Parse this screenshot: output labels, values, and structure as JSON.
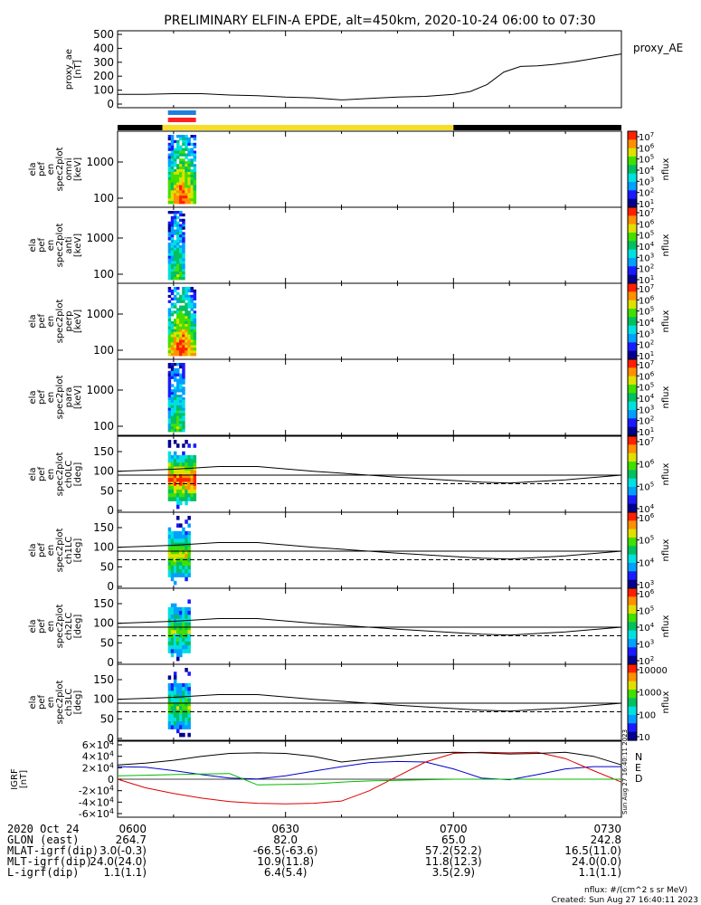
{
  "title": "PRELIMINARY ELFIN-A EPDE, alt=450km, 2020-10-24 06:00 to 07:30",
  "footer": {
    "units": "nflux: #/(cm^2 s sr MeV)",
    "created": "Created: Sun Aug 27 16:40:11 2023"
  },
  "side_stamp": "Sun Aug 27 16:40:11 2023",
  "colorbar_label": "nflux",
  "colorbar_colors": [
    "#000090",
    "#1a1aff",
    "#00a0ff",
    "#00e0e0",
    "#00c060",
    "#40e000",
    "#e0e000",
    "#ff9000",
    "#ff2000"
  ],
  "ephemeris": {
    "rows": [
      {
        "label": "2020 Oct 24",
        "values": [
          "0600",
          "0630",
          "0700",
          "0730"
        ]
      },
      {
        "label": "GLON (east)",
        "values": [
          "264.7",
          "82.0",
          "65.0",
          "242.8"
        ]
      },
      {
        "label": "MLAT-igrf(dip)",
        "values": [
          "3.0(-0.3)",
          "-66.5(-63.6)",
          "57.2(52.2)",
          "16.5(11.0)"
        ]
      },
      {
        "label": "MLT-igrf(dip)",
        "values": [
          "24.0(24.0)",
          "10.9(11.8)",
          "11.8(12.3)",
          "24.0(0.0)"
        ]
      },
      {
        "label": "L-igrf(dip)",
        "values": [
          "1.1(1.1)",
          "6.4(5.4)",
          "3.5(2.9)",
          "1.1(1.1)"
        ]
      }
    ]
  },
  "chart_data": [
    {
      "type": "line",
      "panel": "proxy_ae",
      "ylabel": [
        "proxy_ae",
        "[nT]"
      ],
      "legend": "proxy_AE",
      "xlim": [
        "06:00",
        "07:30"
      ],
      "ylim": [
        0,
        500
      ],
      "yticks": [
        "0",
        "100",
        "200",
        "300",
        "400",
        "500"
      ],
      "x": [
        "06:00",
        "06:05",
        "06:10",
        "06:15",
        "06:20",
        "06:25",
        "06:30",
        "06:35",
        "06:40",
        "06:45",
        "06:50",
        "06:55",
        "07:00",
        "07:03",
        "07:06",
        "07:09",
        "07:12",
        "07:15",
        "07:18",
        "07:21",
        "07:24",
        "07:27",
        "07:30"
      ],
      "values": [
        70,
        70,
        75,
        75,
        65,
        60,
        50,
        45,
        30,
        40,
        50,
        55,
        70,
        90,
        140,
        230,
        270,
        275,
        285,
        300,
        320,
        340,
        360
      ]
    },
    {
      "type": "bar",
      "panel": "orbit_bar",
      "segments": [
        {
          "from": "06:00",
          "to": "06:08",
          "color": "#000000"
        },
        {
          "from": "06:08",
          "to": "07:00",
          "color": "#f5dd2a"
        },
        {
          "from": "07:00",
          "to": "07:30",
          "color": "#000000"
        }
      ],
      "markers": [
        {
          "from": "06:09",
          "to": "06:14",
          "color": "#1e7fe0"
        },
        {
          "from": "06:09",
          "to": "06:14",
          "color": "#ff2020"
        }
      ]
    },
    {
      "type": "heatmap",
      "panel": "omni",
      "ylabel": [
        "ela",
        "pef",
        "en",
        "spec2plot",
        "omni",
        "[keV]"
      ],
      "yticks": [
        "100",
        "1000"
      ],
      "colorbar_ticks": [
        "10^7",
        "10^6",
        "10^5",
        "10^4",
        "10^3",
        "10^2",
        "10^1"
      ],
      "time_range": [
        "06:09",
        "06:14"
      ],
      "peak_level": 8
    },
    {
      "type": "heatmap",
      "panel": "anti",
      "ylabel": [
        "ela",
        "pef",
        "en",
        "spec2plot",
        "anti",
        "[keV]"
      ],
      "yticks": [
        "100",
        "1000"
      ],
      "colorbar_ticks": [
        "10^7",
        "10^6",
        "10^5",
        "10^4",
        "10^3",
        "10^2",
        "10^1"
      ],
      "time_range": [
        "06:09",
        "06:12"
      ],
      "peak_level": 5
    },
    {
      "type": "heatmap",
      "panel": "perp",
      "ylabel": [
        "ela",
        "pef",
        "en",
        "spec2plot",
        "perp",
        "[keV]"
      ],
      "yticks": [
        "100",
        "1000"
      ],
      "colorbar_ticks": [
        "10^7",
        "10^6",
        "10^5",
        "10^4",
        "10^3",
        "10^2",
        "10^1"
      ],
      "time_range": [
        "06:09",
        "06:14"
      ],
      "peak_level": 8
    },
    {
      "type": "heatmap",
      "panel": "para",
      "ylabel": [
        "ela",
        "pef",
        "en",
        "spec2plot",
        "para",
        "[keV]"
      ],
      "yticks": [
        "100",
        "1000"
      ],
      "colorbar_ticks": [
        "10^7",
        "10^6",
        "10^5",
        "10^4",
        "10^3",
        "10^2",
        "10^1"
      ],
      "time_range": [
        "06:09",
        "06:12"
      ],
      "peak_level": 5
    },
    {
      "type": "heatmap",
      "panel": "ch0LC",
      "ylabel": [
        "ela",
        "pef",
        "en",
        "spec2plot",
        "ch0LC",
        "[deg]"
      ],
      "yticks": [
        "0",
        "50",
        "100",
        "150"
      ],
      "colorbar_ticks": [
        "10^7",
        "10^6",
        "10^5",
        "10^4"
      ],
      "time_range": [
        "06:09",
        "06:14"
      ],
      "peak_level": 8
    },
    {
      "type": "heatmap",
      "panel": "ch1LC",
      "ylabel": [
        "ela",
        "pef",
        "en",
        "spec2plot",
        "ch1LC",
        "[deg]"
      ],
      "yticks": [
        "0",
        "50",
        "100",
        "150"
      ],
      "colorbar_ticks": [
        "10^6",
        "10^5",
        "10^4",
        "10^3"
      ],
      "time_range": [
        "06:09",
        "06:13"
      ],
      "peak_level": 6
    },
    {
      "type": "heatmap",
      "panel": "ch2LC",
      "ylabel": [
        "ela",
        "pef",
        "en",
        "spec2plot",
        "ch2LC",
        "[deg]"
      ],
      "yticks": [
        "0",
        "50",
        "100",
        "150"
      ],
      "colorbar_ticks": [
        "10^6",
        "10^5",
        "10^4",
        "10^3",
        "10^2"
      ],
      "time_range": [
        "06:09",
        "06:13"
      ],
      "peak_level": 5
    },
    {
      "type": "heatmap",
      "panel": "ch3LC",
      "ylabel": [
        "ela",
        "pef",
        "en",
        "spec2plot",
        "ch3LC",
        "[deg]"
      ],
      "yticks": [
        "0",
        "50",
        "100",
        "150"
      ],
      "colorbar_ticks": [
        "10000",
        "1000",
        "100",
        "10"
      ],
      "time_range": [
        "06:09",
        "06:13"
      ],
      "peak_level": 5
    },
    {
      "type": "line",
      "panel": "igrf",
      "ylabel": [
        "IGRF",
        "[nT]"
      ],
      "ylim": [
        -60000,
        60000
      ],
      "yticks": [
        "-6×10^4",
        "-4×10^4",
        "-2×10^4",
        "0",
        "2×10^4",
        "4×10^4",
        "6×10^4"
      ],
      "x": [
        "06:00",
        "06:05",
        "06:10",
        "06:15",
        "06:20",
        "06:25",
        "06:30",
        "06:35",
        "06:40",
        "06:45",
        "06:50",
        "06:55",
        "07:00",
        "07:05",
        "07:10",
        "07:15",
        "07:20",
        "07:25",
        "07:30"
      ],
      "series": [
        {
          "name": "N",
          "color": "#0000cc",
          "values": [
            22000,
            21000,
            15000,
            8000,
            2000,
            500,
            6000,
            14000,
            22000,
            29000,
            31000,
            30000,
            18000,
            2000,
            -1000,
            8000,
            18000,
            22000,
            22000
          ]
        },
        {
          "name": "E",
          "color": "#dd0000",
          "values": [
            0,
            -15000,
            -25000,
            -33000,
            -39000,
            -42000,
            -43000,
            -42000,
            -38000,
            -20000,
            5000,
            30000,
            45000,
            47000,
            46000,
            47000,
            36000,
            15000,
            -5000
          ]
        },
        {
          "name": "D",
          "color": "#00bb00",
          "values": [
            6000,
            7000,
            8000,
            9000,
            10000,
            -10000,
            -9000,
            -8000,
            -5000,
            -3000,
            -2000,
            -1000,
            0,
            0,
            0,
            0,
            0,
            0,
            0
          ]
        },
        {
          "name": "",
          "color": "#000000",
          "values": [
            25000,
            28000,
            33000,
            40000,
            45000,
            46000,
            45000,
            40000,
            30000,
            35000,
            40000,
            45000,
            47000,
            46000,
            44000,
            45000,
            47000,
            40000,
            25000
          ]
        }
      ]
    }
  ]
}
